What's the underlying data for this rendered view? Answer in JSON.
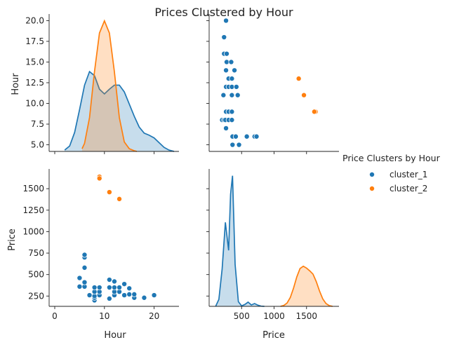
{
  "chart_data": {
    "type": "scatter",
    "kind": "pairplot",
    "title": "Prices Clustered by Hour",
    "variables": [
      "Hour",
      "Price"
    ],
    "axes": {
      "Hour": {
        "label": "Hour",
        "range": [
          0,
          25
        ],
        "diag_ticks": [
          0,
          10,
          20
        ],
        "row_ticks": [
          5.0,
          7.5,
          10.0,
          12.5,
          15.0,
          17.5,
          20.0
        ],
        "row_range": [
          4.2,
          20.8
        ]
      },
      "Price": {
        "label": "Price",
        "range": [
          0,
          2000
        ],
        "diag_ticks": [
          500,
          1000,
          1500
        ],
        "row_ticks": [
          250,
          500,
          750,
          1000,
          1250,
          1500
        ],
        "row_range": [
          130,
          1730
        ]
      }
    },
    "legend": {
      "title": "Price Clusters by Hour",
      "placement": "center-right"
    },
    "colors": {
      "cluster_1": "#1f77b4",
      "cluster_2": "#ff7f0e"
    },
    "series": [
      {
        "name": "cluster_1",
        "points": [
          [
            5,
            360
          ],
          [
            5,
            460
          ],
          [
            6,
            360
          ],
          [
            6,
            410
          ],
          [
            6,
            580
          ],
          [
            6,
            700
          ],
          [
            6,
            730
          ],
          [
            7,
            260
          ],
          [
            8,
            200
          ],
          [
            8,
            230
          ],
          [
            8,
            250
          ],
          [
            8,
            300
          ],
          [
            8,
            350
          ],
          [
            9,
            260
          ],
          [
            9,
            300
          ],
          [
            9,
            350
          ],
          [
            11,
            220
          ],
          [
            11,
            350
          ],
          [
            11,
            440
          ],
          [
            12,
            260
          ],
          [
            12,
            300
          ],
          [
            12,
            350
          ],
          [
            12,
            420
          ],
          [
            13,
            300
          ],
          [
            13,
            350
          ],
          [
            14,
            260
          ],
          [
            14,
            390
          ],
          [
            15,
            270
          ],
          [
            15,
            340
          ],
          [
            16,
            230
          ],
          [
            16,
            270
          ],
          [
            18,
            230
          ],
          [
            20,
            260
          ]
        ]
      },
      {
        "name": "cluster_2",
        "points": [
          [
            9,
            1640
          ],
          [
            9,
            1620
          ],
          [
            11,
            1460
          ],
          [
            13,
            1380
          ]
        ]
      }
    ],
    "kde_hour": {
      "x": [
        2,
        3,
        4,
        5,
        6,
        7,
        8,
        9,
        10,
        11,
        12,
        13,
        14,
        15,
        16,
        17,
        18,
        19,
        20,
        21,
        22,
        23,
        24
      ],
      "cluster_1": [
        0.002,
        0.008,
        0.028,
        0.062,
        0.098,
        0.118,
        0.112,
        0.092,
        0.085,
        0.092,
        0.098,
        0.098,
        0.088,
        0.07,
        0.052,
        0.036,
        0.027,
        0.024,
        0.02,
        0.013,
        0.006,
        0.002,
        0.0
      ],
      "cluster_2_x": [
        5.5,
        6,
        7,
        8,
        9,
        10,
        11,
        12,
        13,
        14,
        15,
        16,
        16.5
      ],
      "cluster_2": [
        0.004,
        0.012,
        0.05,
        0.118,
        0.175,
        0.193,
        0.175,
        0.118,
        0.05,
        0.014,
        0.004,
        0.001,
        0.0
      ]
    },
    "kde_price": {
      "x": [
        100,
        150,
        200,
        250,
        300,
        330,
        360,
        400,
        450,
        500,
        550,
        600,
        650,
        700,
        750,
        800,
        850
      ],
      "cluster_1": [
        0.0,
        0.3,
        1.6,
        3.6,
        2.4,
        4.8,
        5.6,
        1.8,
        0.2,
        0.02,
        0.08,
        0.18,
        0.06,
        0.12,
        0.05,
        0.01,
        0.0
      ],
      "cluster_2_x": [
        1100,
        1150,
        1200,
        1250,
        1300,
        1350,
        1400,
        1450,
        1500,
        1550,
        1600,
        1650,
        1700,
        1750,
        1800,
        1850,
        1900
      ],
      "cluster_2": [
        0.0,
        0.04,
        0.14,
        0.38,
        0.78,
        1.26,
        1.62,
        1.72,
        1.64,
        1.52,
        1.38,
        1.06,
        0.66,
        0.32,
        0.12,
        0.03,
        0.0
      ]
    }
  }
}
